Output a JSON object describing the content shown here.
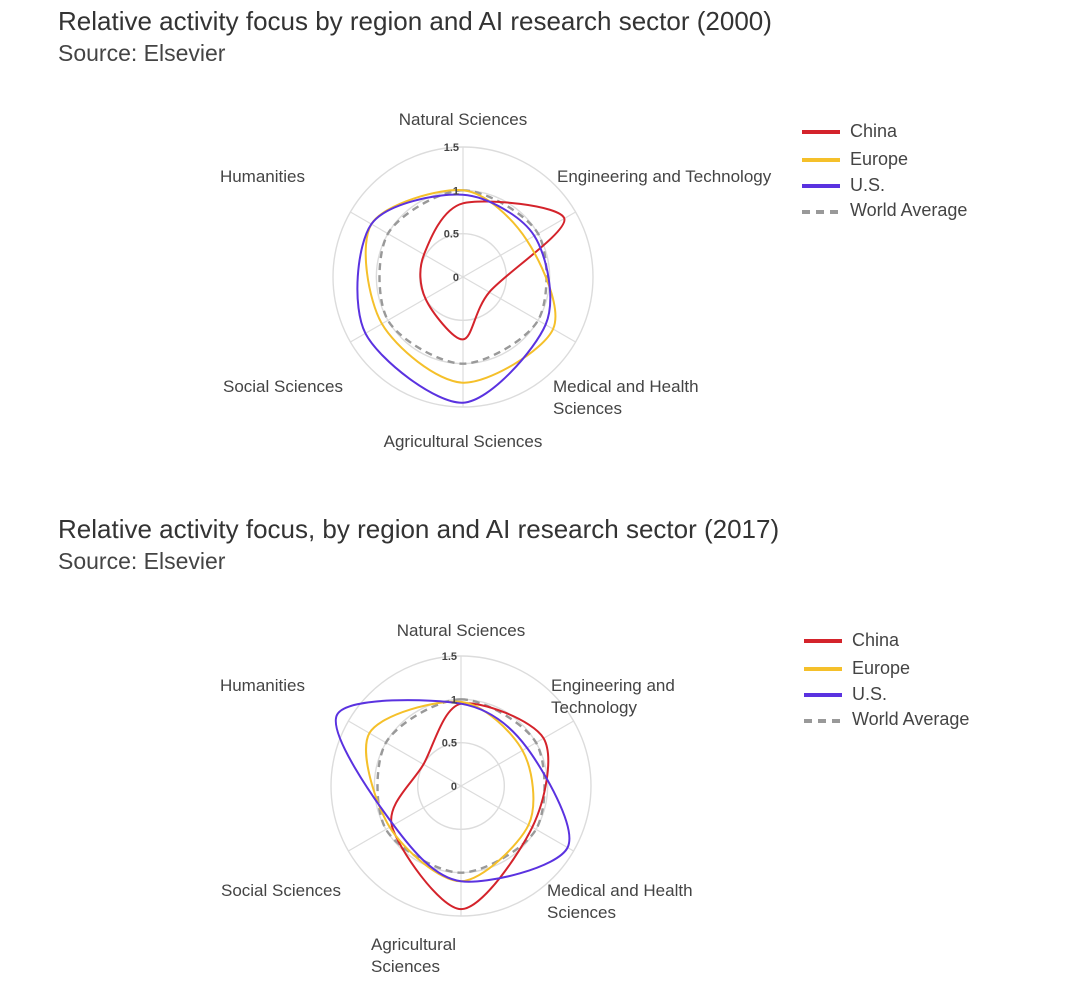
{
  "colors": {
    "China": "#d4232b",
    "Europe": "#f5c02a",
    "U.S.": "#5a32e0",
    "World Average": "#999999",
    "grid": "#dcdcdc"
  },
  "charts": [
    {
      "title": "Relative activity focus by region and AI research sector (2000)",
      "source": "Source: Elsevier",
      "axis_labels": [
        "Natural Sciences",
        "Engineering and Technology",
        "Medical and Health|Sciences",
        "Agricultural Sciences",
        "Social Sciences",
        "Humanities"
      ],
      "tick_labels": [
        "1.5",
        "1",
        "0.5",
        "0"
      ]
    },
    {
      "title": "Relative activity focus, by region and AI research sector (2017)",
      "source": "Source: Elsevier",
      "axis_labels": [
        "Natural Sciences",
        "Engineering and|Technology",
        "Medical and Health|Sciences",
        "Agricultural|Sciences",
        "Social Sciences",
        "Humanities"
      ],
      "tick_labels": [
        "1.5",
        "1",
        "0.5",
        "0"
      ]
    }
  ],
  "legend": [
    "China",
    "Europe",
    "U.S.",
    "World Average"
  ],
  "chart_data": [
    {
      "type": "radar",
      "title": "Relative activity focus by region and AI research sector (2000)",
      "categories": [
        "Natural Sciences",
        "Engineering and Technology",
        "Medical and Health Sciences",
        "Agricultural Sciences",
        "Social Sciences",
        "Humanities"
      ],
      "rlim": [
        0,
        1.5
      ],
      "ticks": [
        0,
        0.5,
        1,
        1.5
      ],
      "legend_position": "top-right",
      "series": [
        {
          "name": "China",
          "values": [
            0.85,
            1.35,
            0.35,
            0.72,
            0.5,
            0.52
          ]
        },
        {
          "name": "Europe",
          "values": [
            1.0,
            0.85,
            1.2,
            1.22,
            1.08,
            1.22
          ]
        },
        {
          "name": "U.S.",
          "values": [
            0.95,
            0.95,
            1.1,
            1.45,
            1.3,
            1.22
          ]
        },
        {
          "name": "World Average",
          "values": [
            1,
            1,
            1,
            1,
            1,
            1
          ]
        }
      ]
    },
    {
      "type": "radar",
      "title": "Relative activity focus, by region and AI research sector (2017)",
      "categories": [
        "Natural Sciences",
        "Engineering and Technology",
        "Medical and Health Sciences",
        "Agricultural Sciences",
        "Social Sciences",
        "Humanities"
      ],
      "rlim": [
        0,
        1.5
      ],
      "ticks": [
        0,
        0.5,
        1,
        1.5
      ],
      "legend_position": "top-right",
      "series": [
        {
          "name": "China",
          "values": [
            0.95,
            1.1,
            0.95,
            1.42,
            0.92,
            0.5
          ]
        },
        {
          "name": "Europe",
          "values": [
            0.97,
            0.82,
            0.9,
            1.1,
            0.95,
            1.22
          ]
        },
        {
          "name": "U.S.",
          "values": [
            0.95,
            0.88,
            1.42,
            1.1,
            0.9,
            1.65
          ]
        },
        {
          "name": "World Average",
          "values": [
            1,
            1,
            1,
            1,
            1,
            1
          ]
        }
      ]
    }
  ]
}
